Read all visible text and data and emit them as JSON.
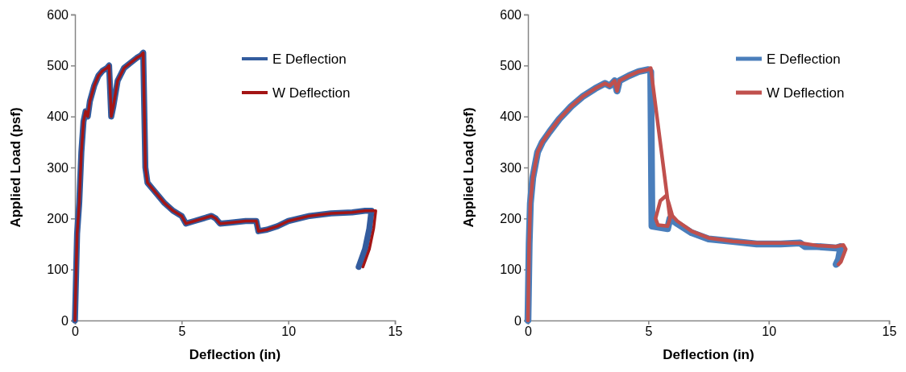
{
  "chart_data": [
    {
      "type": "line",
      "xlabel": "Deflection (in)",
      "ylabel": "Applied Load (psf)",
      "xlim": [
        0,
        15
      ],
      "xticks": [
        0,
        5,
        10,
        15
      ],
      "ylim": [
        0,
        600
      ],
      "yticks": [
        0,
        100,
        200,
        300,
        400,
        500,
        600
      ],
      "grid": false,
      "legend": "top right",
      "marker": "none",
      "line_style": "solid",
      "series": [
        {
          "name": "E Deflection",
          "color": "#335c9e",
          "x": [
            0,
            0.1,
            0.2,
            0.3,
            0.4,
            0.5,
            0.6,
            0.7,
            0.9,
            1.1,
            1.3,
            1.5,
            1.6,
            1.7,
            1.8,
            2.0,
            2.3,
            2.6,
            2.9,
            3.1,
            3.2,
            3.3,
            3.4,
            3.6,
            3.9,
            4.2,
            4.6,
            5.0,
            5.2,
            5.6,
            6.0,
            6.4,
            6.6,
            6.8,
            7.3,
            8.0,
            8.5,
            8.6,
            9.0,
            9.5,
            10,
            11,
            12,
            13,
            13.6,
            13.9,
            13.8,
            13.6,
            13.3
          ],
          "values": [
            0,
            170,
            230,
            330,
            390,
            410,
            400,
            430,
            460,
            480,
            490,
            495,
            500,
            400,
            420,
            470,
            495,
            505,
            515,
            520,
            525,
            300,
            270,
            260,
            245,
            230,
            215,
            205,
            190,
            195,
            200,
            205,
            200,
            190,
            192,
            195,
            195,
            175,
            178,
            185,
            195,
            205,
            210,
            212,
            215,
            215,
            180,
            140,
            105
          ]
        },
        {
          "name": "W Deflection",
          "color": "#a31515",
          "x": [
            0,
            0.1,
            0.2,
            0.3,
            0.4,
            0.5,
            0.6,
            0.7,
            0.9,
            1.1,
            1.3,
            1.5,
            1.6,
            1.7,
            1.8,
            2.0,
            2.3,
            2.6,
            2.9,
            3.1,
            3.2,
            3.3,
            3.4,
            3.6,
            3.9,
            4.2,
            4.6,
            5.0,
            5.2,
            5.6,
            6.0,
            6.4,
            6.6,
            6.8,
            7.3,
            8.0,
            8.5,
            8.6,
            9.0,
            9.5,
            10,
            11,
            12,
            13,
            13.6,
            14.1,
            14.0,
            13.8,
            13.5
          ],
          "values": [
            0,
            170,
            230,
            330,
            390,
            410,
            400,
            430,
            460,
            480,
            490,
            495,
            500,
            400,
            420,
            470,
            495,
            505,
            515,
            520,
            525,
            300,
            270,
            260,
            245,
            230,
            215,
            205,
            190,
            195,
            200,
            205,
            200,
            190,
            192,
            195,
            195,
            175,
            178,
            185,
            195,
            205,
            210,
            212,
            215,
            215,
            180,
            140,
            105
          ]
        }
      ]
    },
    {
      "type": "line",
      "xlabel": "Deflection (in)",
      "ylabel": "Applied Load (psf)",
      "xlim": [
        0,
        15
      ],
      "xticks": [
        0,
        5,
        10,
        15
      ],
      "ylim": [
        0,
        600
      ],
      "yticks": [
        0,
        100,
        200,
        300,
        400,
        500,
        600
      ],
      "grid": false,
      "legend": "top right",
      "marker": "none",
      "line_style": "solid",
      "series": [
        {
          "name": "E Deflection",
          "color": "#4a7ebb",
          "x": [
            0,
            0.05,
            0.1,
            0.2,
            0.4,
            0.6,
            0.9,
            1.3,
            1.8,
            2.3,
            2.8,
            3.2,
            3.4,
            3.6,
            3.7,
            3.8,
            4.2,
            4.6,
            5.0,
            5.1,
            5.15,
            5.4,
            5.8,
            5.9,
            6.2,
            6.8,
            7.5,
            8.5,
            9.5,
            10.5,
            11.3,
            11.5,
            12,
            12.8,
            13.0,
            12.9,
            12.8
          ],
          "values": [
            0,
            150,
            230,
            280,
            330,
            350,
            370,
            395,
            420,
            440,
            455,
            465,
            460,
            470,
            450,
            470,
            480,
            488,
            492,
            488,
            185,
            183,
            180,
            200,
            190,
            172,
            160,
            155,
            150,
            150,
            152,
            145,
            145,
            142,
            145,
            120,
            110
          ]
        },
        {
          "name": "W Deflection",
          "color": "#c0504d",
          "x": [
            0,
            0.05,
            0.1,
            0.2,
            0.4,
            0.6,
            0.9,
            1.3,
            1.8,
            2.3,
            2.8,
            3.2,
            3.4,
            3.6,
            3.7,
            3.8,
            4.2,
            4.6,
            5.0,
            5.1,
            5.9,
            5.8,
            5.4,
            5.3,
            5.5,
            5.75,
            5.85,
            6.0,
            6.2,
            6.8,
            7.5,
            8.5,
            9.5,
            10.5,
            11.3,
            12,
            12.8,
            13.1,
            13.2,
            13.0,
            12.9
          ],
          "values": [
            0,
            150,
            230,
            280,
            330,
            350,
            370,
            395,
            420,
            440,
            455,
            465,
            460,
            470,
            450,
            470,
            480,
            488,
            492,
            495,
            200,
            185,
            187,
            200,
            235,
            245,
            230,
            205,
            195,
            175,
            162,
            155,
            152,
            152,
            152,
            147,
            145,
            148,
            140,
            115,
            110
          ]
        }
      ]
    }
  ]
}
